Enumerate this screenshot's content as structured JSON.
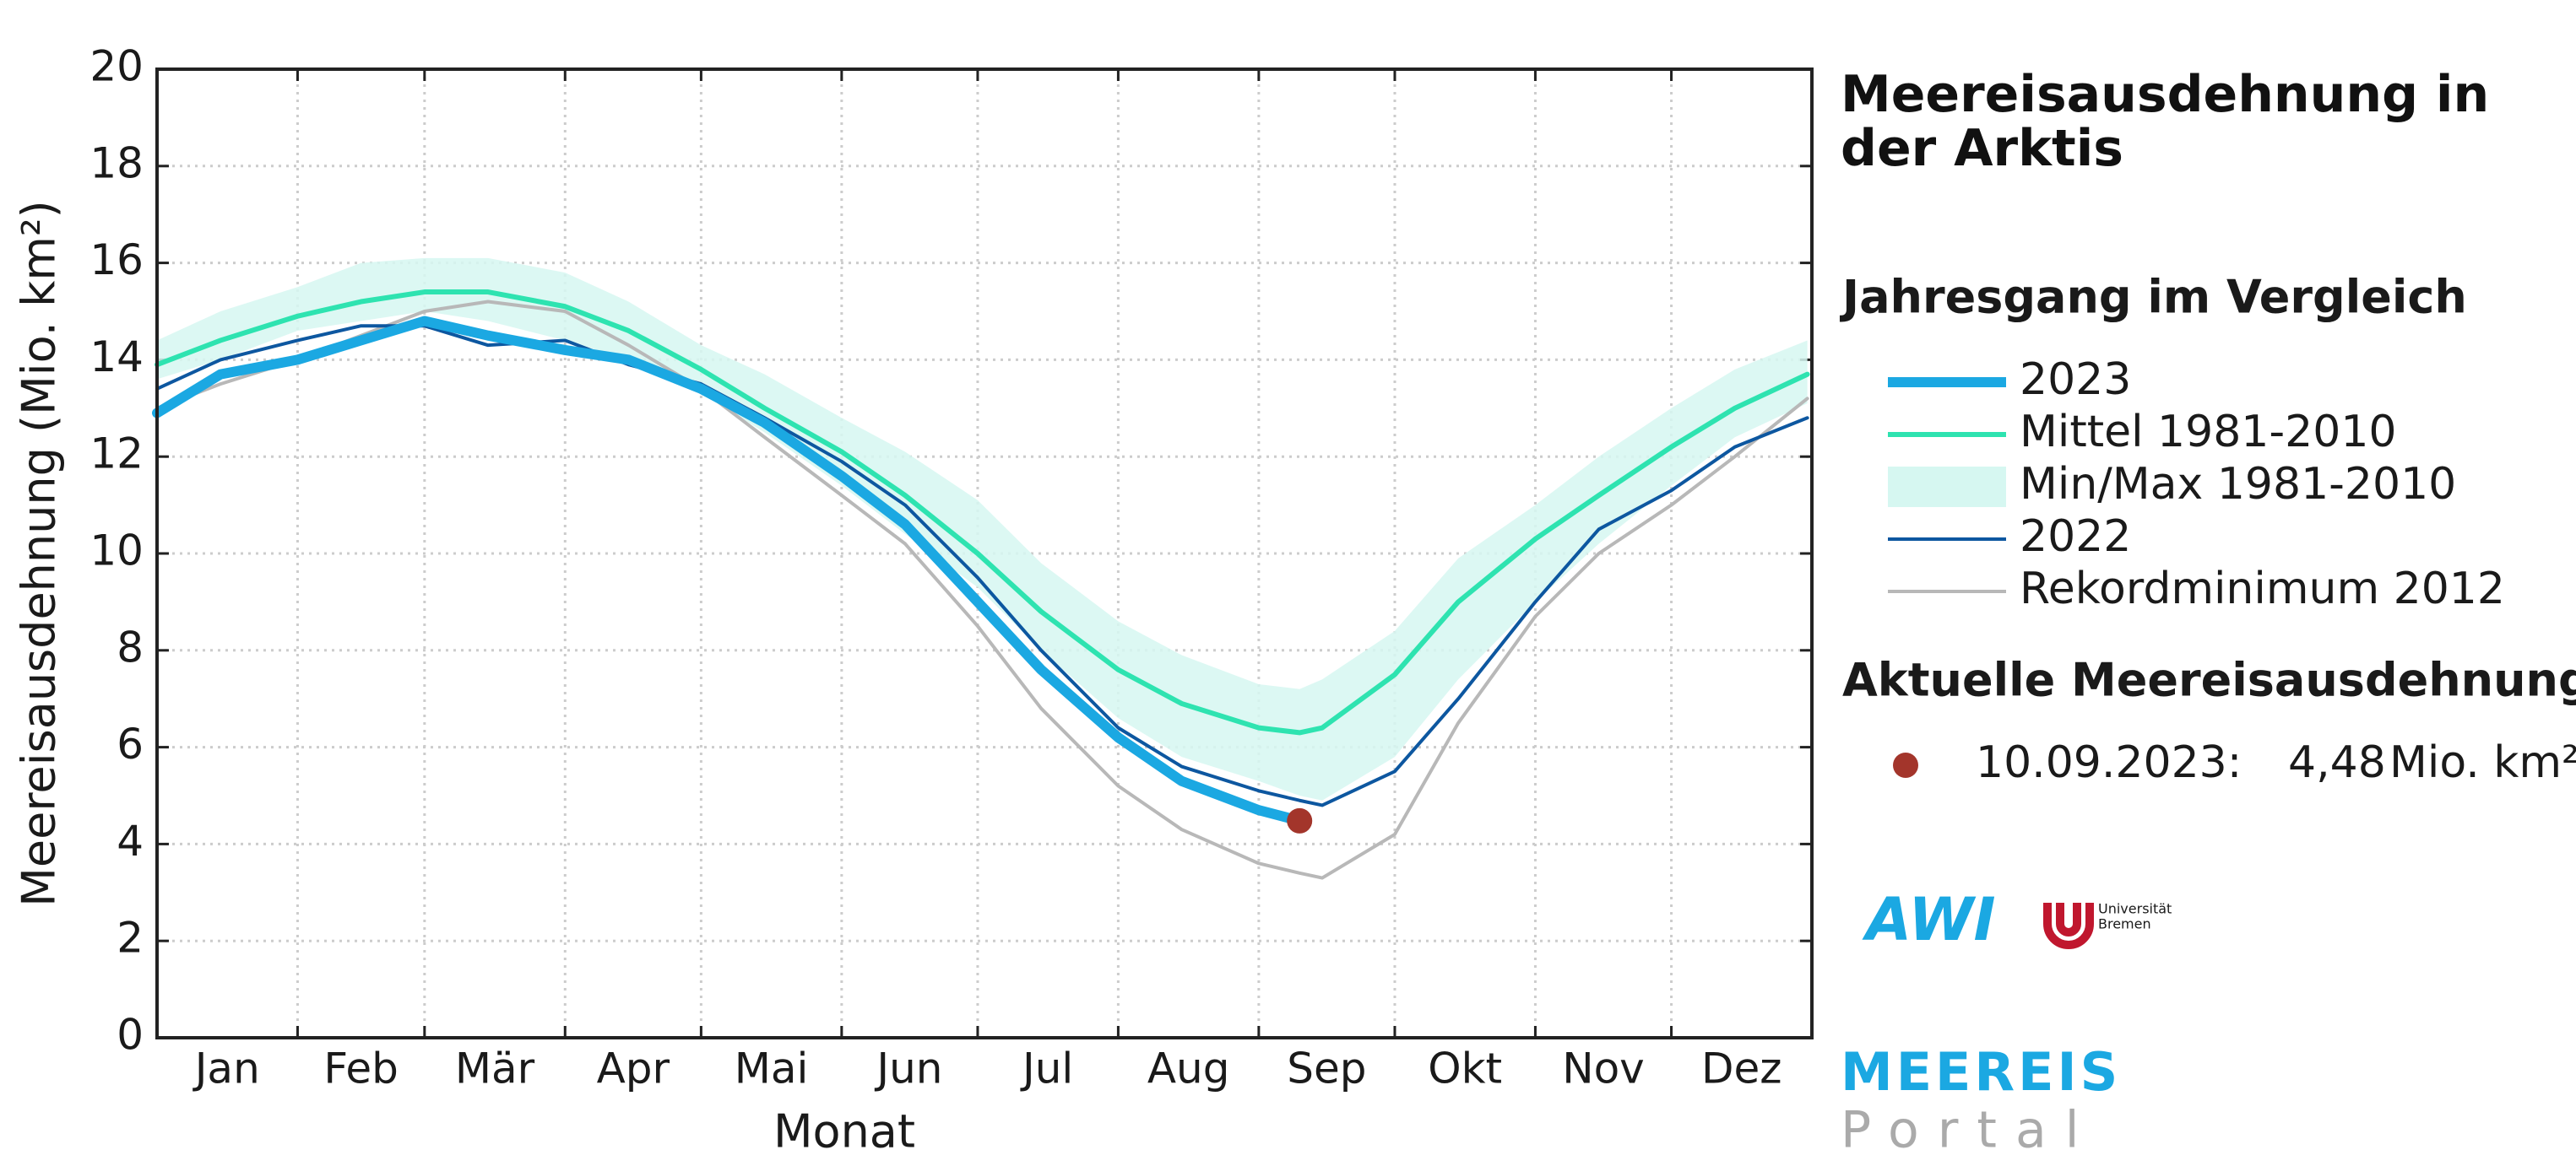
{
  "chart_data": {
    "type": "line",
    "y_label": "Meereisausdehnung (Mio. km²)",
    "x_label": "Monat",
    "categories": [
      "Jan",
      "Feb",
      "Mär",
      "Apr",
      "Mai",
      "Jun",
      "Jul",
      "Aug",
      "Sep",
      "Okt",
      "Nov",
      "Dez"
    ],
    "xlim": [
      1,
      366
    ],
    "xticks": [
      1,
      32,
      60,
      91,
      121,
      152,
      182,
      213,
      244,
      274,
      305,
      335,
      366
    ],
    "ylim": [
      0,
      20
    ],
    "yticks": [
      0,
      2,
      4,
      6,
      8,
      10,
      12,
      14,
      16,
      18,
      20
    ],
    "grid": true,
    "x": [
      1,
      15,
      32,
      46,
      60,
      74,
      91,
      105,
      121,
      135,
      152,
      166,
      182,
      196,
      213,
      227,
      244,
      253,
      258,
      274,
      288,
      305,
      319,
      335,
      349,
      365
    ],
    "band": {
      "name": "Min/Max 1981-2010",
      "color": "#d6f7f1",
      "low": [
        13.6,
        14.0,
        14.6,
        14.8,
        15.0,
        14.8,
        14.4,
        14.0,
        13.3,
        12.5,
        11.4,
        10.4,
        9.3,
        8.0,
        6.6,
        5.8,
        5.3,
        5.0,
        4.9,
        5.8,
        7.4,
        9.0,
        10.2,
        11.4,
        12.4,
        13.1
      ],
      "high": [
        14.4,
        15.0,
        15.5,
        16.0,
        16.1,
        16.1,
        15.8,
        15.2,
        14.3,
        13.7,
        12.8,
        12.1,
        11.1,
        9.8,
        8.6,
        7.9,
        7.3,
        7.2,
        7.4,
        8.4,
        9.9,
        11.0,
        12.0,
        13.0,
        13.8,
        14.4
      ]
    },
    "series": [
      {
        "name": "2023",
        "color": "#1ba8e2",
        "width": 12,
        "values": [
          12.9,
          13.7,
          14.0,
          14.4,
          14.8,
          14.5,
          14.2,
          14.0,
          13.4,
          12.7,
          11.6,
          10.6,
          9.0,
          7.6,
          6.2,
          5.3,
          4.7,
          4.48,
          null,
          null,
          null,
          null,
          null,
          null,
          null,
          null
        ]
      },
      {
        "name": "Mittel 1981-2010",
        "color": "#2ee3b0",
        "width": 6,
        "values": [
          13.9,
          14.4,
          14.9,
          15.2,
          15.4,
          15.4,
          15.1,
          14.6,
          13.8,
          13.0,
          12.1,
          11.2,
          10.0,
          8.8,
          7.6,
          6.9,
          6.4,
          6.3,
          6.4,
          7.5,
          9.0,
          10.3,
          11.2,
          12.2,
          13.0,
          13.7
        ]
      },
      {
        "name": "2022",
        "color": "#0d57a0",
        "width": 4,
        "values": [
          13.4,
          14.0,
          14.4,
          14.7,
          14.7,
          14.3,
          14.4,
          13.9,
          13.5,
          12.8,
          11.9,
          11.0,
          9.5,
          8.0,
          6.4,
          5.6,
          5.1,
          4.9,
          4.8,
          5.5,
          7.0,
          9.0,
          10.5,
          11.3,
          12.2,
          12.8
        ]
      },
      {
        "name": "Rekordminimum 2012",
        "color": "#b8b8b8",
        "width": 4,
        "values": [
          13.0,
          13.5,
          14.0,
          14.5,
          15.0,
          15.2,
          15.0,
          14.3,
          13.4,
          12.4,
          11.2,
          10.2,
          8.5,
          6.8,
          5.2,
          4.3,
          3.6,
          3.4,
          3.3,
          4.2,
          6.5,
          8.7,
          10.0,
          11.0,
          12.0,
          13.2
        ]
      }
    ],
    "title": "Meereisausdehnung in der Arktis",
    "legend_title": "Jahresgang im Vergleich",
    "current_title": "Aktuelle Meereisausdehnung",
    "current": {
      "date": "10.09.2023:",
      "day": 253,
      "value": 4.48,
      "value_label": "4,48",
      "unit": "Mio. km²",
      "color": "#a3352b"
    }
  },
  "logos": {
    "awi": "AWI",
    "uni_1": "Universität",
    "uni_2": "Bremen",
    "portal_1": "MEEREIS",
    "portal_2": "Portal"
  }
}
